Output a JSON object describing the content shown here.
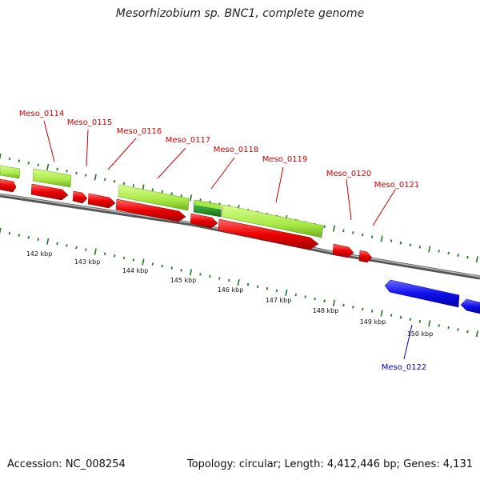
{
  "title": "Mesorhizobium sp. BNC1, complete genome",
  "accession": "Accession: NC_008254",
  "topology": "Topology: circular; Length: 4,412,446 bp; Genes: 4,131",
  "colors": {
    "cds": "#ee0000",
    "cds_reverse": "#1010ee",
    "gene": "#a8e846",
    "gene_dark": "#2e9a2e",
    "label_forward": "#cc0000",
    "label_reverse": "#0000cc",
    "backbone": "#777777",
    "tick": "#1e7a1e"
  },
  "gene_labels": [
    {
      "id": "Meso_0114",
      "strand": "forward"
    },
    {
      "id": "Meso_0115",
      "strand": "forward"
    },
    {
      "id": "Meso_0116",
      "strand": "forward"
    },
    {
      "id": "Meso_0117",
      "strand": "forward"
    },
    {
      "id": "Meso_0118",
      "strand": "forward"
    },
    {
      "id": "Meso_0119",
      "strand": "forward"
    },
    {
      "id": "Meso_0120",
      "strand": "forward"
    },
    {
      "id": "Meso_0121",
      "strand": "forward"
    },
    {
      "id": "Meso_0122",
      "strand": "reverse"
    }
  ],
  "kbp_labels": [
    "142 kbp",
    "143 kbp",
    "144 kbp",
    "145 kbp",
    "146 kbp",
    "147 kbp",
    "148 kbp",
    "149 kbp",
    "150 kbp"
  ]
}
